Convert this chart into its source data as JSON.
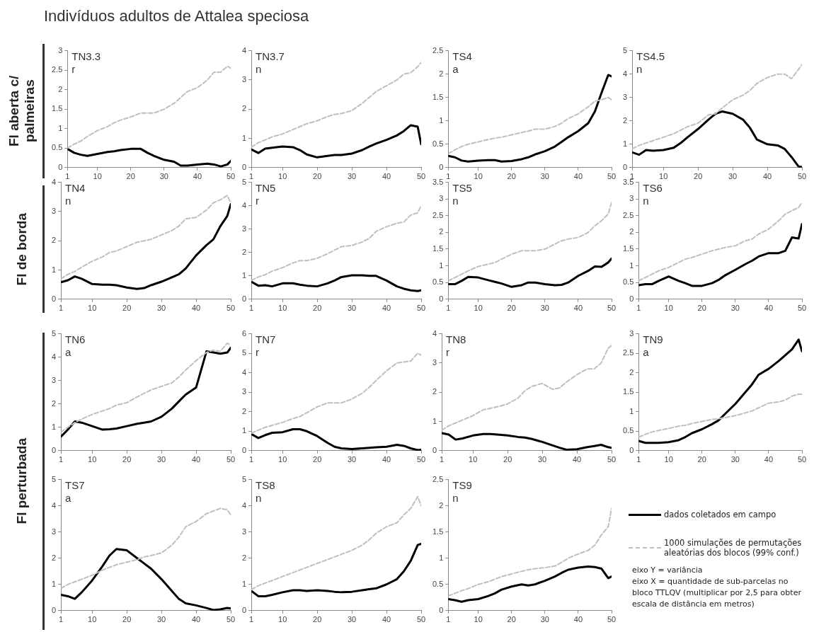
{
  "chart_data": [
    {
      "type": "other",
      "title": "Indivíduos adultos de Attalea speciosa",
      "annotations": [
        "Fl aberta c/ palmeiras",
        "Fl de borda",
        "Fl perturbada",
        "eixo Y = variância",
        "eixo X = quantidade de sub-parcelas no bloco TTLQV (multiplicar por 2,5 para obter escala de distância em metros)"
      ]
    },
    {
      "type": "line",
      "title": "TN3.3",
      "subtitle": "r",
      "x": [
        1,
        3,
        5,
        7,
        10,
        13,
        15,
        17,
        20,
        23,
        25,
        27,
        30,
        33,
        35,
        37,
        40,
        43,
        45,
        47,
        49,
        50
      ],
      "xlim": [
        1,
        50
      ],
      "xticks": [
        1,
        10,
        20,
        30,
        40,
        50
      ],
      "ylim": [
        0,
        3
      ],
      "yticks": [
        0,
        0.5,
        1,
        1.5,
        2,
        2.5,
        3
      ],
      "grid": false,
      "series": [
        {
          "color": "#000000",
          "values": [
            0.48,
            0.38,
            0.33,
            0.3,
            0.35,
            0.4,
            0.42,
            0.45,
            0.48,
            0.48,
            0.38,
            0.3,
            0.2,
            0.15,
            0.05,
            0.05,
            0.08,
            0.1,
            0.08,
            0.03,
            0.08,
            0.17
          ]
        },
        {
          "color": "#bfbfbf",
          "line_style": "dashed",
          "values": [
            0.5,
            0.6,
            0.68,
            0.8,
            0.95,
            1.05,
            1.15,
            1.22,
            1.3,
            1.4,
            1.4,
            1.4,
            1.5,
            1.65,
            1.8,
            1.95,
            2.05,
            2.25,
            2.45,
            2.45,
            2.6,
            2.55
          ]
        }
      ]
    },
    {
      "type": "line",
      "title": "TN3.7",
      "subtitle": "n",
      "x": [
        1,
        3,
        5,
        7,
        10,
        13,
        15,
        17,
        20,
        23,
        25,
        27,
        30,
        33,
        35,
        37,
        40,
        43,
        45,
        47,
        49,
        50
      ],
      "xlim": [
        1,
        50
      ],
      "xticks": [
        1,
        10,
        20,
        30,
        40,
        50
      ],
      "ylim": [
        0,
        4
      ],
      "yticks": [
        0,
        1,
        2,
        3,
        4
      ],
      "grid": false,
      "series": [
        {
          "color": "#000000",
          "values": [
            0.62,
            0.5,
            0.65,
            0.68,
            0.72,
            0.7,
            0.6,
            0.45,
            0.35,
            0.4,
            0.43,
            0.43,
            0.48,
            0.6,
            0.72,
            0.82,
            0.95,
            1.1,
            1.25,
            1.45,
            1.4,
            0.8
          ]
        },
        {
          "color": "#bfbfbf",
          "line_style": "dashed",
          "values": [
            0.7,
            0.85,
            0.95,
            1.05,
            1.15,
            1.3,
            1.4,
            1.5,
            1.6,
            1.75,
            1.82,
            1.85,
            1.95,
            2.2,
            2.4,
            2.6,
            2.8,
            3,
            3.2,
            3.25,
            3.45,
            3.6
          ]
        }
      ]
    },
    {
      "type": "line",
      "title": "TS4",
      "subtitle": "a",
      "x": [
        1,
        3,
        5,
        7,
        10,
        13,
        15,
        17,
        20,
        23,
        25,
        27,
        30,
        33,
        35,
        37,
        40,
        43,
        45,
        47,
        49,
        50
      ],
      "xlim": [
        1,
        50
      ],
      "xticks": [
        1,
        10,
        20,
        30,
        40,
        50
      ],
      "ylim": [
        0,
        2.5
      ],
      "yticks": [
        0,
        0.5,
        1,
        1.5,
        2,
        2.5
      ],
      "grid": false,
      "series": [
        {
          "color": "#000000",
          "values": [
            0.25,
            0.22,
            0.15,
            0.13,
            0.15,
            0.16,
            0.16,
            0.13,
            0.14,
            0.18,
            0.22,
            0.28,
            0.35,
            0.45,
            0.55,
            0.65,
            0.78,
            0.95,
            1.2,
            1.6,
            1.98,
            1.95
          ]
        },
        {
          "color": "#bfbfbf",
          "line_style": "dashed",
          "values": [
            0.3,
            0.38,
            0.45,
            0.5,
            0.55,
            0.6,
            0.63,
            0.65,
            0.7,
            0.75,
            0.78,
            0.82,
            0.82,
            0.88,
            0.95,
            1.05,
            1.15,
            1.3,
            1.42,
            1.45,
            1.5,
            1.45
          ]
        }
      ]
    },
    {
      "type": "line",
      "title": "TS4.5",
      "subtitle": "n",
      "x": [
        1,
        3,
        5,
        7,
        10,
        13,
        15,
        17,
        20,
        23,
        25,
        27,
        30,
        33,
        35,
        37,
        40,
        43,
        45,
        47,
        49,
        50
      ],
      "xlim": [
        1,
        50
      ],
      "xticks": [
        1,
        10,
        20,
        30,
        40,
        50
      ],
      "ylim": [
        0,
        5
      ],
      "yticks": [
        0,
        1,
        2,
        3,
        4,
        5
      ],
      "grid": false,
      "series": [
        {
          "color": "#000000",
          "values": [
            0.65,
            0.55,
            0.75,
            0.72,
            0.75,
            0.85,
            1.05,
            1.3,
            1.65,
            2.05,
            2.3,
            2.4,
            2.3,
            2.05,
            1.7,
            1.2,
            1,
            0.95,
            0.8,
            0.45,
            0.05,
            0.02
          ]
        },
        {
          "color": "#bfbfbf",
          "line_style": "dashed",
          "values": [
            0.8,
            0.95,
            1.05,
            1.15,
            1.3,
            1.45,
            1.6,
            1.75,
            1.9,
            2.25,
            2.3,
            2.55,
            2.9,
            3.1,
            3.3,
            3.6,
            3.85,
            4,
            4,
            3.8,
            4.2,
            4.4
          ]
        }
      ]
    },
    {
      "type": "line",
      "title": "TN4",
      "subtitle": "n",
      "x": [
        1,
        3,
        5,
        7,
        10,
        13,
        15,
        17,
        20,
        23,
        25,
        27,
        30,
        33,
        35,
        37,
        40,
        43,
        45,
        47,
        49,
        50
      ],
      "xlim": [
        1,
        50
      ],
      "xticks": [
        1,
        10,
        20,
        30,
        40,
        50
      ],
      "ylim": [
        0,
        4
      ],
      "yticks": [
        0,
        1,
        2,
        3,
        4
      ],
      "grid": false,
      "series": [
        {
          "color": "#000000",
          "values": [
            0.58,
            0.65,
            0.78,
            0.7,
            0.52,
            0.5,
            0.5,
            0.48,
            0.4,
            0.35,
            0.38,
            0.48,
            0.6,
            0.75,
            0.85,
            1.05,
            1.5,
            1.85,
            2.05,
            2.5,
            2.85,
            3.25
          ]
        },
        {
          "color": "#bfbfbf",
          "line_style": "dashed",
          "values": [
            0.7,
            0.85,
            0.95,
            1.1,
            1.3,
            1.45,
            1.6,
            1.65,
            1.8,
            1.95,
            2,
            2.05,
            2.2,
            2.35,
            2.5,
            2.75,
            2.8,
            3.05,
            3.3,
            3.4,
            3.55,
            3.3
          ]
        }
      ]
    },
    {
      "type": "line",
      "title": "TN5",
      "subtitle": "r",
      "x": [
        1,
        3,
        5,
        7,
        10,
        13,
        15,
        17,
        20,
        23,
        25,
        27,
        30,
        33,
        35,
        37,
        40,
        43,
        45,
        47,
        49,
        50
      ],
      "xlim": [
        1,
        50
      ],
      "xticks": [
        1,
        10,
        20,
        30,
        40,
        50
      ],
      "ylim": [
        0,
        5
      ],
      "yticks": [
        0,
        1,
        2,
        3,
        4,
        5
      ],
      "grid": false,
      "series": [
        {
          "color": "#000000",
          "values": [
            0.75,
            0.58,
            0.6,
            0.55,
            0.68,
            0.68,
            0.62,
            0.58,
            0.55,
            0.68,
            0.8,
            0.95,
            1.02,
            1.02,
            1,
            1,
            0.8,
            0.55,
            0.45,
            0.38,
            0.35,
            0.38
          ]
        },
        {
          "color": "#bfbfbf",
          "line_style": "dashed",
          "values": [
            0.8,
            0.95,
            1.05,
            1.2,
            1.35,
            1.55,
            1.65,
            1.65,
            1.75,
            1.95,
            2.1,
            2.25,
            2.3,
            2.45,
            2.6,
            2.9,
            3.1,
            3.25,
            3.3,
            3.6,
            3.7,
            4
          ]
        }
      ]
    },
    {
      "type": "line",
      "title": "TS5",
      "subtitle": "n",
      "x": [
        1,
        3,
        5,
        7,
        10,
        13,
        15,
        17,
        20,
        23,
        25,
        27,
        30,
        33,
        35,
        37,
        40,
        43,
        45,
        47,
        49,
        50
      ],
      "xlim": [
        1,
        50
      ],
      "xticks": [
        1,
        10,
        20,
        30,
        40,
        50
      ],
      "ylim": [
        0,
        3.5
      ],
      "yticks": [
        0,
        0.5,
        1,
        1.5,
        2,
        2.5,
        3,
        3.5
      ],
      "grid": false,
      "series": [
        {
          "color": "#000000",
          "values": [
            0.45,
            0.45,
            0.55,
            0.67,
            0.65,
            0.57,
            0.52,
            0.47,
            0.37,
            0.42,
            0.5,
            0.5,
            0.45,
            0.42,
            0.43,
            0.5,
            0.7,
            0.85,
            0.98,
            0.97,
            1.1,
            1.22
          ]
        },
        {
          "color": "#bfbfbf",
          "line_style": "dashed",
          "values": [
            0.55,
            0.65,
            0.75,
            0.85,
            0.98,
            1.05,
            1.1,
            1.2,
            1.35,
            1.45,
            1.45,
            1.45,
            1.5,
            1.65,
            1.75,
            1.8,
            1.85,
            2,
            2.2,
            2.35,
            2.55,
            2.9
          ]
        }
      ]
    },
    {
      "type": "line",
      "title": "TS6",
      "subtitle": "n",
      "x": [
        1,
        3,
        5,
        7,
        10,
        13,
        15,
        17,
        20,
        23,
        25,
        27,
        30,
        33,
        35,
        37,
        40,
        43,
        45,
        47,
        49,
        50
      ],
      "xlim": [
        1,
        50
      ],
      "xticks": [
        1,
        10,
        20,
        30,
        40,
        50
      ],
      "ylim": [
        0,
        3.5
      ],
      "yticks": [
        0,
        0.5,
        1,
        1.5,
        2,
        2.5,
        3,
        3.5
      ],
      "grid": false,
      "series": [
        {
          "color": "#000000",
          "values": [
            0.42,
            0.45,
            0.45,
            0.55,
            0.68,
            0.55,
            0.48,
            0.4,
            0.4,
            0.48,
            0.58,
            0.72,
            0.88,
            1.05,
            1.15,
            1.28,
            1.38,
            1.38,
            1.45,
            1.85,
            1.82,
            2.25
          ]
        },
        {
          "color": "#bfbfbf",
          "line_style": "dashed",
          "values": [
            0.55,
            0.65,
            0.75,
            0.85,
            0.95,
            1.1,
            1.2,
            1.25,
            1.35,
            1.45,
            1.5,
            1.55,
            1.6,
            1.75,
            1.8,
            1.95,
            2.1,
            2.35,
            2.55,
            2.65,
            2.75,
            2.9
          ]
        }
      ]
    },
    {
      "type": "line",
      "title": "TN6",
      "subtitle": "a",
      "x": [
        1,
        3,
        5,
        7,
        10,
        13,
        15,
        17,
        20,
        23,
        25,
        27,
        30,
        33,
        35,
        37,
        40,
        43,
        45,
        47,
        49,
        50
      ],
      "xlim": [
        1,
        50
      ],
      "xticks": [
        1,
        10,
        20,
        30,
        40,
        50
      ],
      "ylim": [
        0,
        5
      ],
      "yticks": [
        0,
        1,
        2,
        3,
        4,
        5
      ],
      "grid": false,
      "series": [
        {
          "color": "#000000",
          "values": [
            0.6,
            0.9,
            1.25,
            1.2,
            1.05,
            0.9,
            0.92,
            0.95,
            1.05,
            1.15,
            1.2,
            1.25,
            1.45,
            1.8,
            2.1,
            2.4,
            2.7,
            4.25,
            4.2,
            4.15,
            4.2,
            4.4
          ]
        },
        {
          "color": "#bfbfbf",
          "line_style": "dashed",
          "values": [
            0.8,
            1,
            1.2,
            1.35,
            1.55,
            1.7,
            1.8,
            1.95,
            2.05,
            2.3,
            2.45,
            2.6,
            2.75,
            2.9,
            3.15,
            3.45,
            3.85,
            4.2,
            4.3,
            4.25,
            4.6,
            4.5
          ]
        }
      ]
    },
    {
      "type": "line",
      "title": "TN7",
      "subtitle": "r",
      "x": [
        1,
        3,
        5,
        7,
        10,
        13,
        15,
        17,
        20,
        23,
        25,
        27,
        30,
        33,
        35,
        37,
        40,
        43,
        45,
        47,
        49,
        50
      ],
      "xlim": [
        1,
        50
      ],
      "xticks": [
        1,
        10,
        20,
        30,
        40,
        50
      ],
      "ylim": [
        0,
        6
      ],
      "yticks": [
        0,
        1,
        2,
        3,
        4,
        5,
        6
      ],
      "grid": false,
      "series": [
        {
          "color": "#000000",
          "values": [
            0.85,
            0.65,
            0.8,
            0.92,
            0.95,
            1.1,
            1.1,
            1,
            0.75,
            0.4,
            0.2,
            0.12,
            0.08,
            0.12,
            0.15,
            0.17,
            0.2,
            0.3,
            0.25,
            0.12,
            0.03,
            0.05
          ]
        },
        {
          "color": "#bfbfbf",
          "line_style": "dashed",
          "values": [
            0.9,
            1.05,
            1.2,
            1.3,
            1.45,
            1.65,
            1.75,
            1.95,
            2.25,
            2.45,
            2.45,
            2.45,
            2.65,
            2.95,
            3.25,
            3.6,
            4.1,
            4.5,
            4.55,
            4.6,
            5,
            4.9
          ]
        }
      ]
    },
    {
      "type": "line",
      "title": "TN8",
      "subtitle": "r",
      "x": [
        1,
        3,
        5,
        7,
        10,
        13,
        15,
        17,
        20,
        23,
        25,
        27,
        30,
        33,
        35,
        37,
        40,
        43,
        45,
        47,
        49,
        50
      ],
      "xlim": [
        1,
        50
      ],
      "xticks": [
        1,
        10,
        20,
        30,
        40,
        50
      ],
      "ylim": [
        0,
        4
      ],
      "yticks": [
        0,
        1,
        2,
        3,
        4
      ],
      "grid": false,
      "series": [
        {
          "color": "#000000",
          "values": [
            0.6,
            0.55,
            0.38,
            0.42,
            0.52,
            0.57,
            0.57,
            0.55,
            0.52,
            0.47,
            0.45,
            0.4,
            0.3,
            0.18,
            0.1,
            0.03,
            0.05,
            0.12,
            0.16,
            0.2,
            0.12,
            0.1
          ]
        },
        {
          "color": "#bfbfbf",
          "line_style": "dashed",
          "values": [
            0.7,
            0.85,
            0.95,
            1.05,
            1.2,
            1.4,
            1.45,
            1.5,
            1.6,
            1.8,
            2.05,
            2.2,
            2.3,
            2.1,
            2.15,
            2.35,
            2.6,
            2.8,
            2.8,
            3,
            3.5,
            3.6
          ]
        }
      ]
    },
    {
      "type": "line",
      "title": "TN9",
      "subtitle": "a",
      "x": [
        1,
        3,
        5,
        7,
        10,
        13,
        15,
        17,
        20,
        23,
        25,
        27,
        30,
        33,
        35,
        37,
        40,
        43,
        45,
        47,
        49,
        50
      ],
      "xlim": [
        1,
        50
      ],
      "xticks": [
        1,
        10,
        20,
        30,
        40,
        50
      ],
      "ylim": [
        0,
        3
      ],
      "yticks": [
        0,
        0.5,
        1,
        1.5,
        2,
        2.5,
        3
      ],
      "grid": false,
      "series": [
        {
          "color": "#000000",
          "values": [
            0.25,
            0.2,
            0.2,
            0.2,
            0.22,
            0.27,
            0.35,
            0.45,
            0.55,
            0.68,
            0.78,
            0.95,
            1.2,
            1.5,
            1.7,
            1.95,
            2.1,
            2.3,
            2.45,
            2.6,
            2.85,
            2.55
          ]
        },
        {
          "color": "#bfbfbf",
          "line_style": "dashed",
          "values": [
            0.35,
            0.42,
            0.48,
            0.52,
            0.57,
            0.63,
            0.65,
            0.7,
            0.75,
            0.8,
            0.82,
            0.85,
            0.9,
            0.97,
            1.02,
            1.1,
            1.22,
            1.25,
            1.3,
            1.4,
            1.45,
            1.45
          ]
        }
      ]
    },
    {
      "type": "line",
      "title": "TS7",
      "subtitle": "a",
      "x": [
        1,
        3,
        5,
        7,
        10,
        13,
        15,
        17,
        20,
        23,
        25,
        27,
        30,
        33,
        35,
        37,
        40,
        43,
        45,
        47,
        49,
        50
      ],
      "xlim": [
        1,
        50
      ],
      "xticks": [
        1,
        10,
        20,
        30,
        40,
        50
      ],
      "ylim": [
        0,
        5
      ],
      "yticks": [
        0,
        1,
        2,
        3,
        4,
        5
      ],
      "grid": false,
      "series": [
        {
          "color": "#000000",
          "values": [
            0.6,
            0.55,
            0.45,
            0.7,
            1.15,
            1.7,
            2.1,
            2.35,
            2.3,
            2,
            1.8,
            1.6,
            1.2,
            0.75,
            0.45,
            0.28,
            0.2,
            0.1,
            0.02,
            0.05,
            0.1,
            0.08
          ]
        },
        {
          "color": "#bfbfbf",
          "line_style": "dashed",
          "values": [
            0.85,
            1,
            1.1,
            1.2,
            1.35,
            1.55,
            1.65,
            1.75,
            1.85,
            1.95,
            2.05,
            2.1,
            2.2,
            2.5,
            2.8,
            3.2,
            3.4,
            3.7,
            3.8,
            3.9,
            3.85,
            3.65
          ]
        }
      ]
    },
    {
      "type": "line",
      "title": "TS8",
      "subtitle": "n",
      "x": [
        1,
        3,
        5,
        7,
        10,
        13,
        15,
        17,
        20,
        23,
        25,
        27,
        30,
        33,
        35,
        37,
        40,
        43,
        45,
        47,
        49,
        50
      ],
      "xlim": [
        1,
        50
      ],
      "xticks": [
        1,
        10,
        20,
        30,
        40,
        50
      ],
      "ylim": [
        0,
        5
      ],
      "yticks": [
        0,
        1,
        2,
        3,
        4,
        5
      ],
      "grid": false,
      "series": [
        {
          "color": "#000000",
          "values": [
            0.75,
            0.55,
            0.55,
            0.6,
            0.7,
            0.78,
            0.78,
            0.75,
            0.78,
            0.75,
            0.72,
            0.7,
            0.72,
            0.78,
            0.82,
            0.85,
            1,
            1.2,
            1.5,
            1.9,
            2.5,
            2.55
          ]
        },
        {
          "color": "#bfbfbf",
          "line_style": "dashed",
          "values": [
            0.8,
            0.95,
            1.05,
            1.15,
            1.3,
            1.45,
            1.55,
            1.65,
            1.8,
            1.95,
            2.05,
            2.15,
            2.3,
            2.5,
            2.7,
            2.95,
            3.2,
            3.35,
            3.65,
            3.9,
            4.35,
            4
          ]
        }
      ]
    },
    {
      "type": "line",
      "title": "TS9",
      "subtitle": "n",
      "x": [
        1,
        3,
        5,
        7,
        10,
        13,
        15,
        17,
        20,
        23,
        25,
        27,
        30,
        33,
        35,
        37,
        40,
        43,
        45,
        47,
        49,
        50
      ],
      "xlim": [
        1,
        50
      ],
      "xticks": [
        1,
        10,
        20,
        30,
        40,
        50
      ],
      "ylim": [
        0,
        2.5
      ],
      "yticks": [
        0,
        0.5,
        1,
        1.5,
        2,
        2.5
      ],
      "grid": false,
      "legend": "right",
      "series": [
        {
          "name": "dados coletados em campo",
          "color": "#000000",
          "values": [
            0.22,
            0.2,
            0.17,
            0.2,
            0.22,
            0.28,
            0.33,
            0.4,
            0.46,
            0.5,
            0.48,
            0.5,
            0.57,
            0.65,
            0.72,
            0.78,
            0.82,
            0.84,
            0.83,
            0.8,
            0.62,
            0.65
          ]
        },
        {
          "name": "1000 simulações de permutações aleatórias dos blocos (99% conf.)",
          "color": "#bfbfbf",
          "line_style": "dashed",
          "values": [
            0.28,
            0.33,
            0.38,
            0.42,
            0.5,
            0.55,
            0.6,
            0.65,
            0.7,
            0.75,
            0.78,
            0.8,
            0.82,
            0.85,
            0.92,
            1,
            1.08,
            1.15,
            1.25,
            1.45,
            1.6,
            1.95
          ]
        }
      ]
    }
  ]
}
